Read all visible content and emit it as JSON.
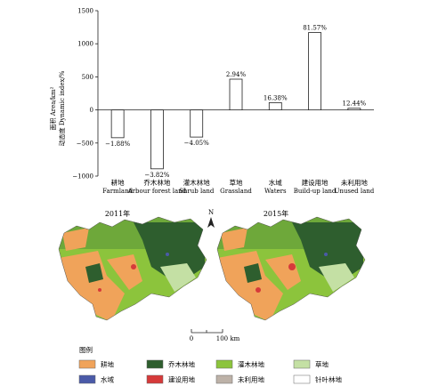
{
  "chart_data": {
    "type": "bar",
    "categories": [
      {
        "zh": "耕地",
        "en": "Farmland"
      },
      {
        "zh": "乔木林地",
        "en": "Arbour forest land"
      },
      {
        "zh": "灌木林地",
        "en": "Shrub land"
      },
      {
        "zh": "草地",
        "en": "Grassland"
      },
      {
        "zh": "水域",
        "en": "Waters"
      },
      {
        "zh": "建设用地",
        "en": "Build-up land"
      },
      {
        "zh": "未利用地",
        "en": "Unused land"
      }
    ],
    "values": [
      -420,
      -890,
      -410,
      465,
      110,
      1170,
      25
    ],
    "data_labels": [
      "−1.88%",
      "−3.82%",
      "−4.05%",
      "2.94%",
      "16.38%",
      "81.57%",
      "12.44%"
    ],
    "ylabel_line1": "面积 Area/km²",
    "ylabel_line2": "动态度 Dynamic index/%",
    "ylim": [
      -1000,
      1500
    ],
    "yticks": [
      "1500",
      "1000",
      "500",
      "0",
      "−500",
      "−1000"
    ],
    "ytick_values": [
      1500,
      1000,
      500,
      0,
      -500,
      -1000
    ],
    "grid": false
  },
  "maps": {
    "left_title": "2011年",
    "right_title": "2015年",
    "north_label": "N",
    "scale_zero": "0",
    "scale_label": "100 km"
  },
  "legend": {
    "title": "图例",
    "items": [
      {
        "label": "耕地",
        "color": "#f0a35a"
      },
      {
        "label": "乔木林地",
        "color": "#2e5e2e"
      },
      {
        "label": "灌木林地",
        "color": "#8cc43c"
      },
      {
        "label": "草地",
        "color": "#c4e0a4"
      },
      {
        "label": "水域",
        "color": "#4a5aa8"
      },
      {
        "label": "建设用地",
        "color": "#d63a3a"
      },
      {
        "label": "未利用地",
        "color": "#bdb2a8"
      },
      {
        "label": "针叶林地",
        "color": "#ffffff"
      }
    ]
  }
}
